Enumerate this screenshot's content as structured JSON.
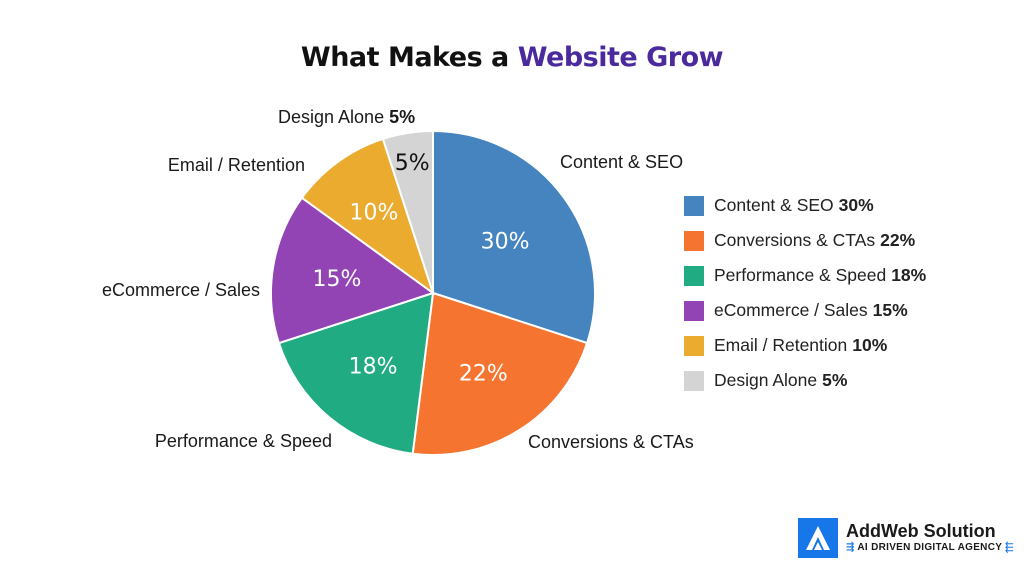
{
  "title": {
    "part1": "What Makes a",
    "part2": "Website Grow"
  },
  "chart_data": {
    "type": "pie",
    "title": "What Makes a Website Grow",
    "start_angle_deg": 0,
    "slices": [
      {
        "label": "Content & SEO",
        "value": 30,
        "display": "30%",
        "color": "#4584bf",
        "legend": "Content & SEO",
        "legend_value": "30%"
      },
      {
        "label": "Conversions & CTAs",
        "value": 22,
        "display": "22%",
        "color": "#f47430",
        "legend": "Conversions & CTAs",
        "legend_value": "22%"
      },
      {
        "label": "Performance & Speed",
        "value": 18,
        "display": "18%",
        "color": "#21ab82",
        "legend": "Performance & Speed",
        "legend_value": "18%"
      },
      {
        "label": "eCommerce / Sales",
        "value": 15,
        "display": "15%",
        "color": "#9244b5",
        "legend": "eCommerce / Sales",
        "legend_value": "15%"
      },
      {
        "label": "Email / Retention",
        "value": 10,
        "display": "10%",
        "color": "#eaab2f",
        "legend": "Email / Retention",
        "legend_value": "10%"
      },
      {
        "label": "Design Alone",
        "value": 5,
        "display": "5%",
        "color": "#d4d4d4",
        "legend": "Design Alone",
        "legend_value": "5%",
        "outer_label_value": "5%"
      }
    ],
    "legend_position": "right"
  },
  "logo": {
    "name": "AddWeb Solution",
    "tagline": "AI DRIVEN DIGITAL AGENCY",
    "color": "#1877e8"
  }
}
